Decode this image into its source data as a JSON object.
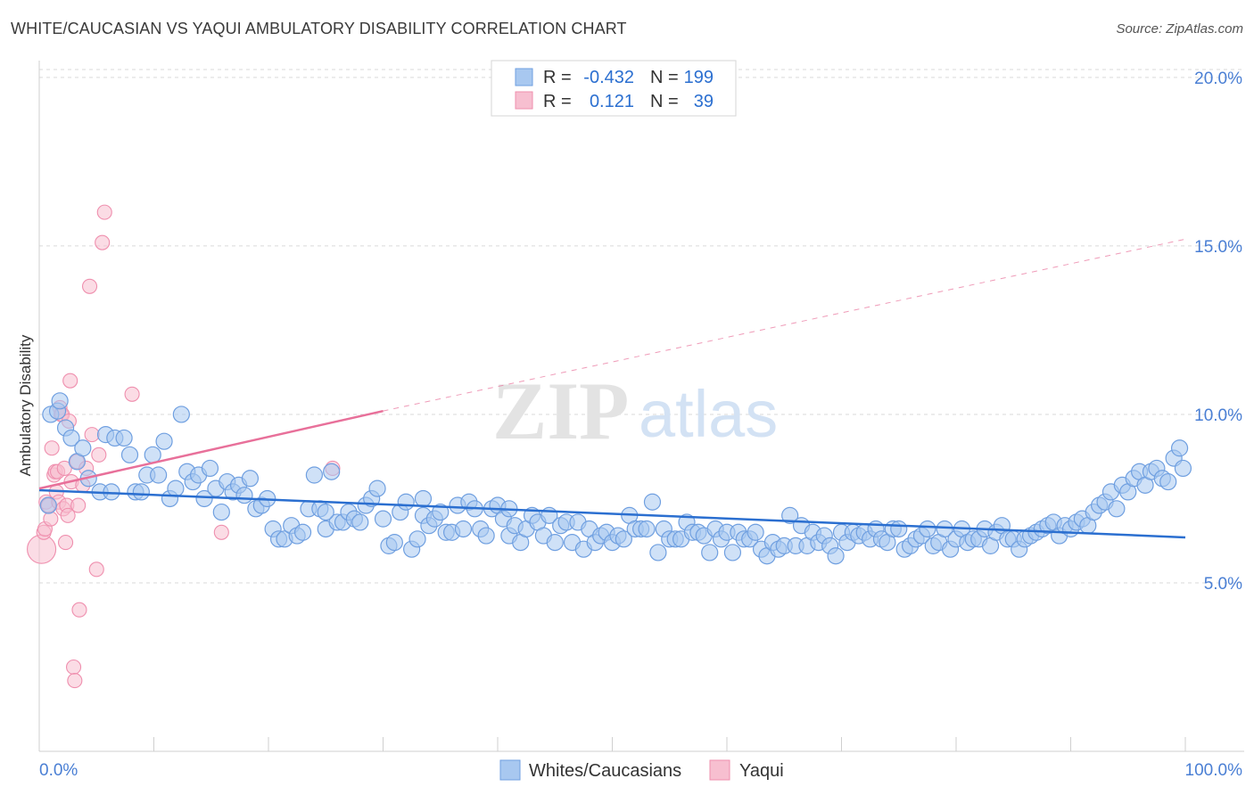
{
  "title": "WHITE/CAUCASIAN VS YAQUI AMBULATORY DISABILITY CORRELATION CHART",
  "source": "Source: ZipAtlas.com",
  "watermark": {
    "zip": "ZIP",
    "atlas": "atlas"
  },
  "colors": {
    "blue_fill": "#a8c8f0",
    "blue_stroke": "#6f9fe0",
    "blue_line": "#2b6fd0",
    "pink_fill": "#f7bfd0",
    "pink_stroke": "#ef8fae",
    "pink_line": "#e8709a",
    "tick_text": "#4a7fd4",
    "grid": "#d9d9d9"
  },
  "legend_box": {
    "r_label": "R =",
    "n_label": "N =",
    "rows": [
      {
        "r": "-0.432",
        "n": "199"
      },
      {
        "r": "0.121",
        "n": "39"
      }
    ]
  },
  "chart_data": {
    "type": "scatter",
    "title": "WHITE/CAUCASIAN VS YAQUI AMBULATORY DISABILITY CORRELATION CHART",
    "xlabel": "",
    "ylabel": "Ambulatory Disability",
    "xlim": [
      0,
      100
    ],
    "ylim": [
      0,
      20.5
    ],
    "x_tick_labels": [
      "0.0%",
      "100.0%"
    ],
    "y_ticks": [
      5,
      10,
      15,
      20
    ],
    "y_tick_labels": [
      "5.0%",
      "10.0%",
      "15.0%",
      "20.0%"
    ],
    "grid": true,
    "legend_position": "bottom-center",
    "series": [
      {
        "name": "Whites/Caucasians",
        "r": -0.432,
        "n": 199,
        "trend": {
          "x0": 0,
          "y0": 7.75,
          "x1": 100,
          "y1": 6.35
        },
        "points": [
          [
            0.8,
            7.3
          ],
          [
            1.0,
            10.0
          ],
          [
            1.6,
            10.1
          ],
          [
            1.8,
            10.4
          ],
          [
            2.3,
            9.6
          ],
          [
            2.8,
            9.3
          ],
          [
            3.3,
            8.6
          ],
          [
            3.8,
            9.0
          ],
          [
            4.3,
            8.1
          ],
          [
            5.3,
            7.7
          ],
          [
            5.8,
            9.4
          ],
          [
            6.3,
            7.7
          ],
          [
            6.6,
            9.3
          ],
          [
            7.4,
            9.3
          ],
          [
            7.9,
            8.8
          ],
          [
            8.4,
            7.7
          ],
          [
            8.9,
            7.7
          ],
          [
            9.4,
            8.2
          ],
          [
            9.9,
            8.8
          ],
          [
            10.4,
            8.2
          ],
          [
            10.9,
            9.2
          ],
          [
            11.4,
            7.5
          ],
          [
            11.9,
            7.8
          ],
          [
            12.4,
            10.0
          ],
          [
            12.9,
            8.3
          ],
          [
            13.4,
            8.0
          ],
          [
            13.9,
            8.2
          ],
          [
            14.4,
            7.5
          ],
          [
            14.9,
            8.4
          ],
          [
            15.4,
            7.8
          ],
          [
            15.9,
            7.1
          ],
          [
            16.4,
            8.0
          ],
          [
            16.9,
            7.7
          ],
          [
            17.4,
            7.9
          ],
          [
            17.9,
            7.6
          ],
          [
            18.4,
            8.1
          ],
          [
            18.9,
            7.2
          ],
          [
            19.4,
            7.3
          ],
          [
            19.9,
            7.5
          ],
          [
            20.4,
            6.6
          ],
          [
            20.9,
            6.3
          ],
          [
            21.4,
            6.3
          ],
          [
            22.0,
            6.7
          ],
          [
            22.5,
            6.4
          ],
          [
            23.0,
            6.5
          ],
          [
            23.5,
            7.2
          ],
          [
            24.0,
            8.2
          ],
          [
            24.5,
            7.2
          ],
          [
            25.0,
            6.6
          ],
          [
            25.5,
            8.3
          ],
          [
            26.0,
            6.8
          ],
          [
            26.5,
            6.8
          ],
          [
            27.0,
            7.1
          ],
          [
            27.5,
            6.9
          ],
          [
            28.0,
            6.8
          ],
          [
            28.5,
            7.3
          ],
          [
            29.0,
            7.5
          ],
          [
            29.5,
            7.8
          ],
          [
            30.0,
            6.9
          ],
          [
            30.5,
            6.1
          ],
          [
            31.0,
            6.2
          ],
          [
            31.5,
            7.1
          ],
          [
            32.0,
            7.4
          ],
          [
            32.5,
            6.0
          ],
          [
            33.0,
            6.3
          ],
          [
            33.5,
            7.0
          ],
          [
            34.0,
            6.7
          ],
          [
            34.5,
            6.9
          ],
          [
            35.0,
            7.1
          ],
          [
            35.5,
            6.5
          ],
          [
            36.0,
            6.5
          ],
          [
            36.5,
            7.3
          ],
          [
            37.0,
            6.6
          ],
          [
            37.5,
            7.4
          ],
          [
            38.0,
            7.2
          ],
          [
            38.5,
            6.6
          ],
          [
            39.0,
            6.4
          ],
          [
            39.5,
            7.2
          ],
          [
            40.0,
            7.3
          ],
          [
            40.5,
            6.9
          ],
          [
            41.0,
            6.4
          ],
          [
            41.5,
            6.7
          ],
          [
            42.0,
            6.2
          ],
          [
            42.5,
            6.6
          ],
          [
            43.0,
            7.0
          ],
          [
            43.5,
            6.8
          ],
          [
            44.0,
            6.4
          ],
          [
            44.5,
            7.0
          ],
          [
            45.0,
            6.2
          ],
          [
            45.5,
            6.7
          ],
          [
            46.0,
            6.8
          ],
          [
            46.5,
            6.2
          ],
          [
            47.0,
            6.8
          ],
          [
            47.5,
            6.0
          ],
          [
            48.0,
            6.6
          ],
          [
            48.5,
            6.2
          ],
          [
            49.0,
            6.4
          ],
          [
            49.5,
            6.5
          ],
          [
            50.0,
            6.2
          ],
          [
            50.5,
            6.4
          ],
          [
            51.0,
            6.3
          ],
          [
            51.5,
            7.0
          ],
          [
            52.0,
            6.6
          ],
          [
            52.5,
            6.6
          ],
          [
            53.0,
            6.6
          ],
          [
            53.5,
            7.4
          ],
          [
            54.0,
            5.9
          ],
          [
            54.5,
            6.6
          ],
          [
            55.0,
            6.3
          ],
          [
            55.5,
            6.3
          ],
          [
            56.0,
            6.3
          ],
          [
            56.5,
            6.8
          ],
          [
            57.0,
            6.5
          ],
          [
            57.5,
            6.5
          ],
          [
            58.0,
            6.4
          ],
          [
            58.5,
            5.9
          ],
          [
            59.0,
            6.6
          ],
          [
            59.5,
            6.3
          ],
          [
            60.0,
            6.5
          ],
          [
            60.5,
            5.9
          ],
          [
            61.0,
            6.5
          ],
          [
            61.5,
            6.3
          ],
          [
            62.0,
            6.3
          ],
          [
            62.5,
            6.5
          ],
          [
            63.0,
            6.0
          ],
          [
            63.5,
            5.8
          ],
          [
            64.0,
            6.2
          ],
          [
            64.5,
            6.0
          ],
          [
            65.0,
            6.1
          ],
          [
            65.5,
            7.0
          ],
          [
            66.0,
            6.1
          ],
          [
            66.5,
            6.7
          ],
          [
            67.0,
            6.1
          ],
          [
            67.5,
            6.5
          ],
          [
            68.0,
            6.2
          ],
          [
            68.5,
            6.4
          ],
          [
            69.0,
            6.1
          ],
          [
            69.5,
            5.8
          ],
          [
            70.0,
            6.5
          ],
          [
            70.5,
            6.2
          ],
          [
            71.0,
            6.5
          ],
          [
            71.5,
            6.4
          ],
          [
            72.0,
            6.5
          ],
          [
            72.5,
            6.3
          ],
          [
            73.0,
            6.6
          ],
          [
            73.5,
            6.3
          ],
          [
            74.0,
            6.2
          ],
          [
            74.5,
            6.6
          ],
          [
            75.0,
            6.6
          ],
          [
            75.5,
            6.0
          ],
          [
            76.0,
            6.1
          ],
          [
            76.5,
            6.3
          ],
          [
            77.0,
            6.4
          ],
          [
            77.5,
            6.6
          ],
          [
            78.0,
            6.1
          ],
          [
            78.5,
            6.2
          ],
          [
            79.0,
            6.6
          ],
          [
            79.5,
            6.0
          ],
          [
            80.0,
            6.3
          ],
          [
            80.5,
            6.6
          ],
          [
            81.0,
            6.2
          ],
          [
            81.5,
            6.3
          ],
          [
            82.0,
            6.3
          ],
          [
            82.5,
            6.6
          ],
          [
            83.0,
            6.1
          ],
          [
            83.5,
            6.5
          ],
          [
            84.0,
            6.7
          ],
          [
            84.5,
            6.3
          ],
          [
            85.0,
            6.3
          ],
          [
            85.5,
            6.0
          ],
          [
            86.0,
            6.3
          ],
          [
            86.5,
            6.4
          ],
          [
            87.0,
            6.5
          ],
          [
            87.5,
            6.6
          ],
          [
            88.0,
            6.7
          ],
          [
            88.5,
            6.8
          ],
          [
            89.0,
            6.4
          ],
          [
            89.5,
            6.7
          ],
          [
            90.0,
            6.6
          ],
          [
            90.5,
            6.8
          ],
          [
            91.0,
            6.9
          ],
          [
            91.5,
            6.7
          ],
          [
            92.0,
            7.1
          ],
          [
            92.5,
            7.3
          ],
          [
            93.0,
            7.4
          ],
          [
            93.5,
            7.7
          ],
          [
            94.0,
            7.2
          ],
          [
            94.5,
            7.9
          ],
          [
            95.0,
            7.7
          ],
          [
            95.5,
            8.1
          ],
          [
            96.0,
            8.3
          ],
          [
            96.5,
            7.9
          ],
          [
            97.0,
            8.3
          ],
          [
            97.5,
            8.4
          ],
          [
            98.0,
            8.1
          ],
          [
            98.5,
            8.0
          ],
          [
            99.0,
            8.7
          ],
          [
            99.5,
            9.0
          ],
          [
            99.8,
            8.4
          ],
          [
            25.0,
            7.1
          ],
          [
            33.5,
            7.5
          ],
          [
            41.0,
            7.2
          ]
        ]
      },
      {
        "name": "Yaqui",
        "r": 0.121,
        "n": 39,
        "trend": {
          "x0": 0,
          "y0": 7.8,
          "x1": 30,
          "y1": 10.1,
          "dash_x1": 100,
          "dash_y1": 15.2
        },
        "points": [
          [
            0.2,
            6.0
          ],
          [
            0.4,
            6.5
          ],
          [
            0.5,
            6.6
          ],
          [
            0.6,
            7.4
          ],
          [
            0.8,
            7.3
          ],
          [
            1.0,
            6.9
          ],
          [
            1.1,
            9.0
          ],
          [
            1.3,
            8.2
          ],
          [
            1.4,
            8.3
          ],
          [
            1.5,
            7.7
          ],
          [
            1.6,
            8.3
          ],
          [
            1.7,
            7.4
          ],
          [
            1.8,
            10.2
          ],
          [
            1.9,
            10.0
          ],
          [
            2.0,
            10.0
          ],
          [
            2.1,
            7.2
          ],
          [
            2.2,
            8.4
          ],
          [
            2.3,
            6.2
          ],
          [
            2.4,
            7.3
          ],
          [
            2.5,
            7.0
          ],
          [
            2.6,
            9.8
          ],
          [
            2.7,
            11.0
          ],
          [
            2.8,
            8.0
          ],
          [
            3.0,
            2.5
          ],
          [
            3.1,
            2.1
          ],
          [
            3.3,
            8.6
          ],
          [
            3.4,
            7.3
          ],
          [
            3.5,
            4.2
          ],
          [
            3.8,
            7.9
          ],
          [
            4.1,
            8.4
          ],
          [
            4.4,
            13.8
          ],
          [
            4.6,
            9.4
          ],
          [
            5.0,
            5.4
          ],
          [
            5.2,
            8.8
          ],
          [
            5.5,
            15.1
          ],
          [
            5.7,
            16.0
          ],
          [
            8.1,
            10.6
          ],
          [
            15.9,
            6.5
          ],
          [
            25.6,
            8.4
          ]
        ]
      }
    ]
  }
}
